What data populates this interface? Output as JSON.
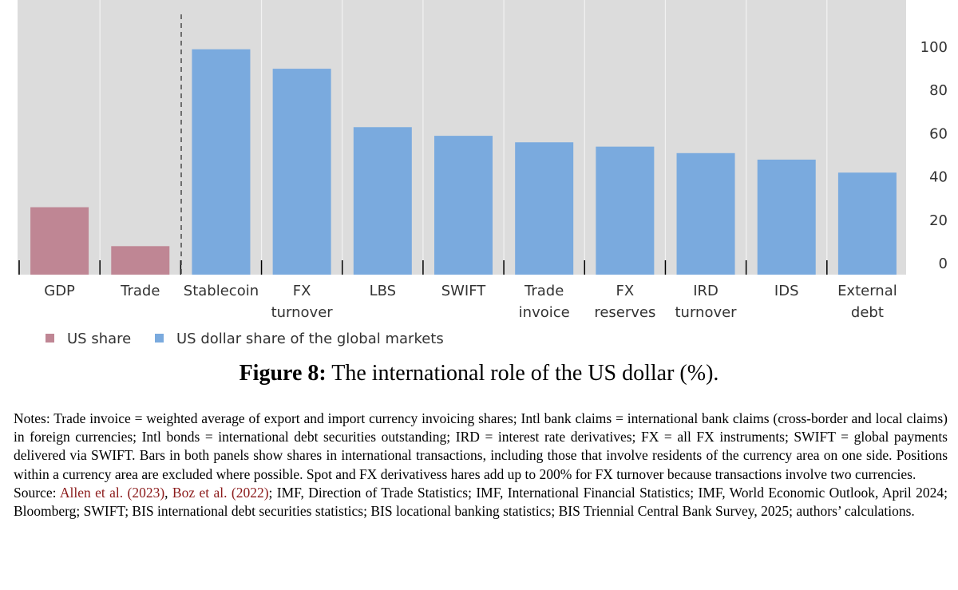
{
  "chart_data": {
    "type": "bar",
    "categories": [
      [
        "GDP"
      ],
      [
        "Trade"
      ],
      [
        "Stablecoin"
      ],
      [
        "FX",
        "turnover"
      ],
      [
        "LBS"
      ],
      [
        "SWIFT"
      ],
      [
        "Trade",
        "invoice"
      ],
      [
        "FX",
        "reserves"
      ],
      [
        "IRD",
        "turnover"
      ],
      [
        "IDS"
      ],
      [
        "External",
        "debt"
      ]
    ],
    "values": [
      26,
      8,
      99,
      90,
      63,
      59,
      56,
      54,
      51,
      48,
      42
    ],
    "series_index": [
      0,
      0,
      1,
      1,
      1,
      1,
      1,
      1,
      1,
      1,
      1
    ],
    "series": [
      {
        "name": "US share",
        "color": "#bf8694"
      },
      {
        "name": "US dollar share of the global markets",
        "color": "#7aaade"
      }
    ],
    "y_ticks": [
      "0",
      "20",
      "40",
      "60",
      "80",
      "100"
    ],
    "y_tick_values": [
      0,
      20,
      40,
      60,
      80,
      100
    ],
    "ylim": [
      0,
      118
    ],
    "y_axis_side": "right",
    "grid": true,
    "panel_divider_after": "Trade",
    "legend_position": "bottom-left",
    "plot_background": "#dcdcdc"
  },
  "caption": {
    "label": "Figure 8:",
    "text": "The international role of the US dollar (%)."
  },
  "notes": {
    "notes_text": "Notes: Trade invoice = weighted average of export and import currency invoicing shares; Intl bank claims = international bank claims (cross-border and local claims) in foreign currencies; Intl bonds = international debt securities outstanding; IRD = interest rate derivatives; FX = all FX instruments; SWIFT = global payments delivered via SWIFT. Bars in both panels show shares in international transactions, including those that involve residents of the currency area on one side. Positions within a currency area are excluded where possible. Spot and FX derivativess hares add up to 200% for FX turnover because transactions involve two currencies.",
    "source_prefix": "Source: ",
    "cite1": "Allen et al. (2023)",
    "sep": ", ",
    "cite2": "Boz et al. (2022)",
    "source_rest": "; IMF, Direction of Trade Statistics; IMF, International Financial Statistics; IMF, World Economic Outlook, April 2024; Bloomberg; SWIFT; BIS international debt securities statistics; BIS locational banking statistics; BIS Triennial Central Bank Survey, 2025; authors’ calculations."
  }
}
